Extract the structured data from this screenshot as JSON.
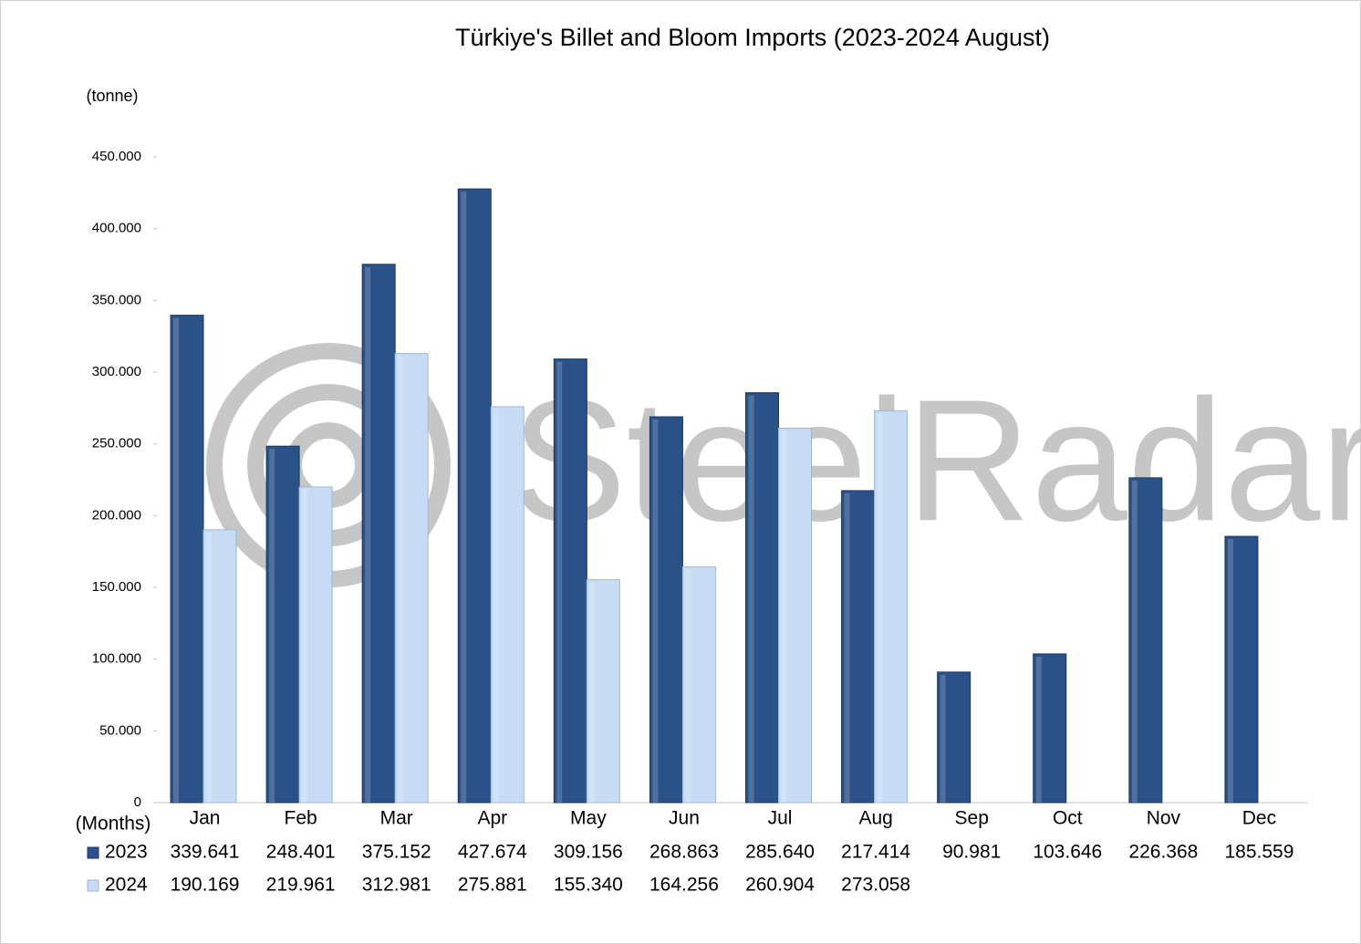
{
  "chart_data": {
    "type": "bar",
    "title": "Türkiye's Billet and Bloom Imports (2023-2024 August)",
    "y_label": "(tonne)",
    "x_label": "(Months)",
    "watermark": "SteelRadar",
    "categories": [
      "Jan",
      "Feb",
      "Mar",
      "Apr",
      "May",
      "Jun",
      "Jul",
      "Aug",
      "Sep",
      "Oct",
      "Nov",
      "Dec"
    ],
    "series": [
      {
        "name": "2023",
        "color": "#2b5189",
        "values": [
          339641,
          248401,
          375152,
          427674,
          309156,
          268863,
          285640,
          217414,
          90981,
          103646,
          226368,
          185559
        ],
        "value_labels": [
          "339.641",
          "248.401",
          "375.152",
          "427.674",
          "309.156",
          "268.863",
          "285.640",
          "217.414",
          "90.981",
          "103.646",
          "226.368",
          "185.559"
        ]
      },
      {
        "name": "2024",
        "color": "#c7dcf4",
        "values": [
          190169,
          219961,
          312981,
          275881,
          155340,
          164256,
          260904,
          273058,
          null,
          null,
          null,
          null
        ],
        "value_labels": [
          "190.169",
          "219.961",
          "312.981",
          "275.881",
          "155.340",
          "164.256",
          "260.904",
          "273.058",
          null,
          null,
          null,
          null
        ]
      }
    ],
    "ylim": [
      0,
      450000
    ],
    "yticks": [
      0,
      {
        "value": 50000,
        "label": "50.000"
      },
      {
        "value": 100000,
        "label": "100.000"
      },
      {
        "value": 150000,
        "label": "150.000"
      },
      {
        "value": 200000,
        "label": "200.000"
      },
      {
        "value": 250000,
        "label": "250.000"
      },
      {
        "value": 300000,
        "label": "300.000"
      },
      {
        "value": 350000,
        "label": "350.000"
      },
      {
        "value": 400000,
        "label": "400.000"
      },
      {
        "value": 450000,
        "label": "450.000"
      }
    ],
    "grid": false
  }
}
